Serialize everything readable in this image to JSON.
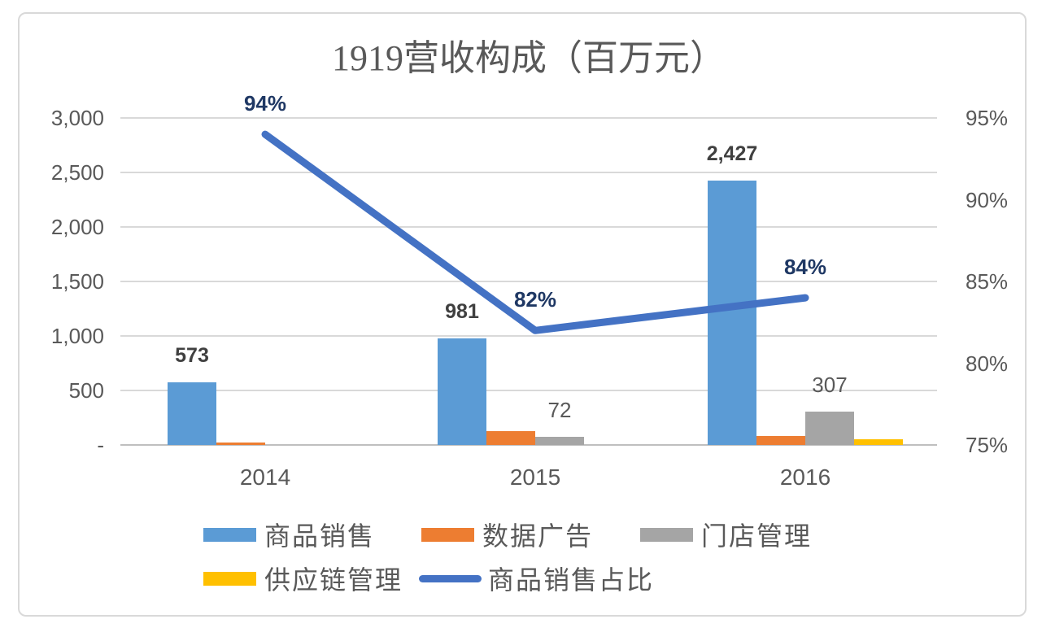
{
  "chart_data": {
    "type": "bar+line",
    "title": "1919营收构成（百万元）",
    "categories": [
      "2014",
      "2015",
      "2016"
    ],
    "bar_series": [
      {
        "name": "商品销售",
        "color": "#5B9BD5",
        "values": [
          573,
          981,
          2427
        ],
        "data_labels": [
          "573",
          "981",
          "2,427"
        ],
        "label_class": "label-bold"
      },
      {
        "name": "数据广告",
        "color": "#ED7D31",
        "values": [
          25,
          130,
          80
        ],
        "data_labels": [
          "",
          "",
          ""
        ],
        "label_class": "label-gray"
      },
      {
        "name": "门店管理",
        "color": "#A5A5A5",
        "values": [
          0,
          72,
          307
        ],
        "data_labels": [
          "",
          "72",
          "307"
        ],
        "label_class": "label-gray"
      },
      {
        "name": "供应链管理",
        "color": "#FFC000",
        "values": [
          0,
          0,
          50
        ],
        "data_labels": [
          "",
          "",
          ""
        ],
        "label_class": "label-gray"
      }
    ],
    "line_series": {
      "name": "商品销售占比",
      "color": "#4472C4",
      "values": [
        94,
        82,
        84
      ],
      "data_labels": [
        "94%",
        "82%",
        "84%"
      ],
      "axis": "right"
    },
    "left_axis": {
      "tick_labels": [
        "3,000",
        "2,500",
        "2,000",
        "1,500",
        "1,000",
        "500",
        "-"
      ],
      "tick_values": [
        3000,
        2500,
        2000,
        1500,
        1000,
        500,
        0
      ],
      "min": 0,
      "max": 3000
    },
    "right_axis": {
      "tick_labels": [
        "95%",
        "90%",
        "85%",
        "80%",
        "75%"
      ],
      "tick_values": [
        95,
        90,
        85,
        80,
        75
      ],
      "min": 75,
      "max": 95
    },
    "grid": true,
    "legend_position": "bottom",
    "legend_rows": [
      [
        {
          "name": "商品销售",
          "swatch": "rect",
          "color": "#5B9BD5"
        },
        {
          "name": "数据广告",
          "swatch": "rect",
          "color": "#ED7D31"
        },
        {
          "name": "门店管理",
          "swatch": "rect",
          "color": "#A5A5A5"
        }
      ],
      [
        {
          "name": "供应链管理",
          "swatch": "rect",
          "color": "#FFC000"
        },
        {
          "name": "商品销售占比",
          "swatch": "line",
          "color": "#4472C4"
        }
      ]
    ],
    "colors": {
      "grid": "#D9D9D9",
      "axis_line": "#BFBFBF",
      "tick_text": "#595959",
      "title_text": "#595959",
      "bold_value_label": "#404040",
      "gray_value_label": "#595959",
      "percent_label": "#1F3864",
      "frame_border": "#D9D9D9"
    }
  }
}
